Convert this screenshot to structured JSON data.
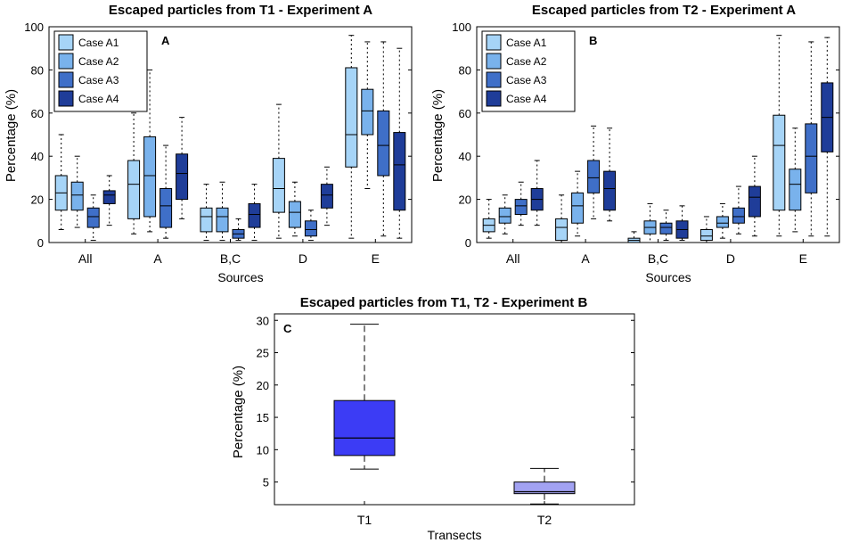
{
  "chart_data": [
    {
      "type": "box",
      "panel_label": "A",
      "title": "Escaped particles from T1 - Experiment A",
      "xlabel": "Sources",
      "ylabel": "Percentage (%)",
      "ylim": [
        0,
        100
      ],
      "yticks": [
        "0",
        "20",
        "40",
        "60",
        "80",
        "100"
      ],
      "categories": [
        "All",
        "A",
        "B,C",
        "D",
        "E"
      ],
      "legend_position": "top-left",
      "series": [
        {
          "name": "Case A1",
          "color": "#a6d4f7",
          "boxes": [
            {
              "whislo": 6,
              "q1": 15,
              "med": 23,
              "q3": 31,
              "whishi": 50
            },
            {
              "whislo": 4,
              "q1": 11,
              "med": 27,
              "q3": 38,
              "whishi": 60
            },
            {
              "whislo": 1,
              "q1": 5,
              "med": 12,
              "q3": 16,
              "whishi": 27
            },
            {
              "whislo": 2,
              "q1": 14,
              "med": 25,
              "q3": 39,
              "whishi": 64
            },
            {
              "whislo": 2,
              "q1": 35,
              "med": 50,
              "q3": 81,
              "whishi": 96
            }
          ]
        },
        {
          "name": "Case A2",
          "color": "#79b2ec",
          "boxes": [
            {
              "whislo": 7,
              "q1": 15,
              "med": 22,
              "q3": 28,
              "whishi": 40
            },
            {
              "whislo": 5,
              "q1": 12,
              "med": 31,
              "q3": 49,
              "whishi": 80
            },
            {
              "whislo": 1,
              "q1": 5,
              "med": 12,
              "q3": 16,
              "whishi": 28
            },
            {
              "whislo": 3,
              "q1": 7,
              "med": 14,
              "q3": 19,
              "whishi": 28
            },
            {
              "whislo": 25,
              "q1": 50,
              "med": 61,
              "q3": 71,
              "whishi": 93
            }
          ]
        },
        {
          "name": "Case A3",
          "color": "#3f6fc8",
          "boxes": [
            {
              "whislo": 1,
              "q1": 7,
              "med": 12,
              "q3": 16,
              "whishi": 22
            },
            {
              "whislo": 2,
              "q1": 7,
              "med": 17,
              "q3": 25,
              "whishi": 45
            },
            {
              "whislo": 1,
              "q1": 2,
              "med": 4,
              "q3": 6,
              "whishi": 11
            },
            {
              "whislo": 1,
              "q1": 3,
              "med": 6,
              "q3": 10,
              "whishi": 15
            },
            {
              "whislo": 3,
              "q1": 31,
              "med": 45,
              "q3": 61,
              "whishi": 93
            }
          ]
        },
        {
          "name": "Case A4",
          "color": "#1f3d99",
          "boxes": [
            {
              "whislo": 8,
              "q1": 18,
              "med": 22,
              "q3": 24,
              "whishi": 31
            },
            {
              "whislo": 11,
              "q1": 20,
              "med": 32,
              "q3": 41,
              "whishi": 58
            },
            {
              "whislo": 1,
              "q1": 7,
              "med": 13,
              "q3": 18,
              "whishi": 27
            },
            {
              "whislo": 8,
              "q1": 16,
              "med": 22,
              "q3": 27,
              "whishi": 35
            },
            {
              "whislo": 2,
              "q1": 15,
              "med": 36,
              "q3": 51,
              "whishi": 90
            }
          ]
        }
      ]
    },
    {
      "type": "box",
      "panel_label": "B",
      "title": "Escaped particles from T2 - Experiment A",
      "xlabel": "Sources",
      "ylabel": "Percentage (%)",
      "ylim": [
        0,
        100
      ],
      "yticks": [
        "0",
        "20",
        "40",
        "60",
        "80",
        "100"
      ],
      "categories": [
        "All",
        "A",
        "B,C",
        "D",
        "E"
      ],
      "legend_position": "top-left",
      "series": [
        {
          "name": "Case A1",
          "color": "#a6d4f7",
          "boxes": [
            {
              "whislo": 2,
              "q1": 5,
              "med": 8,
              "q3": 11,
              "whishi": 20
            },
            {
              "whislo": 0,
              "q1": 1,
              "med": 7,
              "q3": 11,
              "whishi": 22
            },
            {
              "whislo": 0,
              "q1": 0,
              "med": 1,
              "q3": 2,
              "whishi": 5
            },
            {
              "whislo": 0,
              "q1": 1,
              "med": 3,
              "q3": 6,
              "whishi": 12
            },
            {
              "whislo": 3,
              "q1": 15,
              "med": 45,
              "q3": 59,
              "whishi": 96
            }
          ]
        },
        {
          "name": "Case A2",
          "color": "#79b2ec",
          "boxes": [
            {
              "whislo": 4,
              "q1": 9,
              "med": 12,
              "q3": 16,
              "whishi": 22
            },
            {
              "whislo": 3,
              "q1": 9,
              "med": 17,
              "q3": 23,
              "whishi": 33
            },
            {
              "whislo": 0,
              "q1": 4,
              "med": 7,
              "q3": 10,
              "whishi": 18
            },
            {
              "whislo": 2,
              "q1": 7,
              "med": 9,
              "q3": 12,
              "whishi": 18
            },
            {
              "whislo": 5,
              "q1": 15,
              "med": 27,
              "q3": 34,
              "whishi": 53
            }
          ]
        },
        {
          "name": "Case A3",
          "color": "#3f6fc8",
          "boxes": [
            {
              "whislo": 8,
              "q1": 13,
              "med": 17,
              "q3": 20,
              "whishi": 28
            },
            {
              "whislo": 11,
              "q1": 23,
              "med": 30,
              "q3": 38,
              "whishi": 54
            },
            {
              "whislo": 1,
              "q1": 4,
              "med": 7,
              "q3": 9,
              "whishi": 15
            },
            {
              "whislo": 4,
              "q1": 9,
              "med": 12,
              "q3": 16,
              "whishi": 26
            },
            {
              "whislo": 3,
              "q1": 23,
              "med": 40,
              "q3": 55,
              "whishi": 93
            }
          ]
        },
        {
          "name": "Case A4",
          "color": "#1f3d99",
          "boxes": [
            {
              "whislo": 8,
              "q1": 15,
              "med": 20,
              "q3": 25,
              "whishi": 38
            },
            {
              "whislo": 10,
              "q1": 15,
              "med": 25,
              "q3": 33,
              "whishi": 53
            },
            {
              "whislo": 1,
              "q1": 2,
              "med": 6,
              "q3": 10,
              "whishi": 17
            },
            {
              "whislo": 3,
              "q1": 12,
              "med": 21,
              "q3": 26,
              "whishi": 40
            },
            {
              "whislo": 3,
              "q1": 42,
              "med": 58,
              "q3": 74,
              "whishi": 95
            }
          ]
        }
      ]
    },
    {
      "type": "box",
      "panel_label": "C",
      "title": "Escaped particles from T1, T2 - Experiment B",
      "xlabel": "Transects",
      "ylabel": "Percentage (%)",
      "ylim": [
        1.5,
        31
      ],
      "yticks": [
        "5",
        "10",
        "15",
        "20",
        "25",
        "30"
      ],
      "categories": [
        "T1",
        "T2"
      ],
      "boxes": [
        {
          "name": "T1",
          "color": "#3c3cf5",
          "whislo": 7,
          "q1": 9.1,
          "med": 11.8,
          "q3": 17.6,
          "whishi": 29.4
        },
        {
          "name": "T2",
          "color": "#a2a2f2",
          "whislo": 1.6,
          "q1": 3.2,
          "med": 3.5,
          "q3": 5,
          "whishi": 7.1
        }
      ]
    }
  ]
}
